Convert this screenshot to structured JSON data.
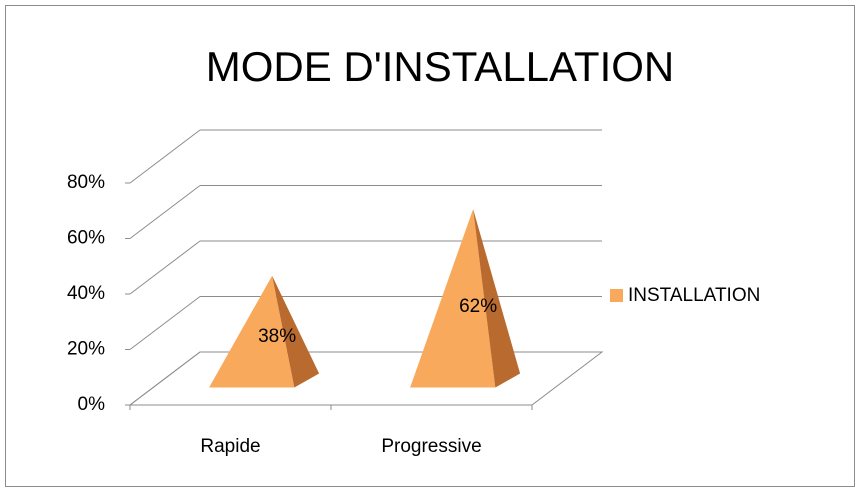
{
  "chart_data": {
    "type": "pyramid",
    "title": "MODE D'INSTALLATION",
    "categories": [
      "Rapide",
      "Progressive"
    ],
    "series": [
      {
        "name": "INSTALLATION",
        "color": "#f9a95c",
        "values": [
          38,
          62
        ],
        "value_labels": [
          "38%",
          "62%"
        ]
      }
    ],
    "ylim": [
      0,
      80
    ],
    "yticks": [
      {
        "value": 0,
        "label": "0%"
      },
      {
        "value": 20,
        "label": "20%"
      },
      {
        "value": 40,
        "label": "40%"
      },
      {
        "value": 60,
        "label": "60%"
      },
      {
        "value": 80,
        "label": "80%"
      }
    ],
    "grid": true,
    "legend": "right"
  }
}
